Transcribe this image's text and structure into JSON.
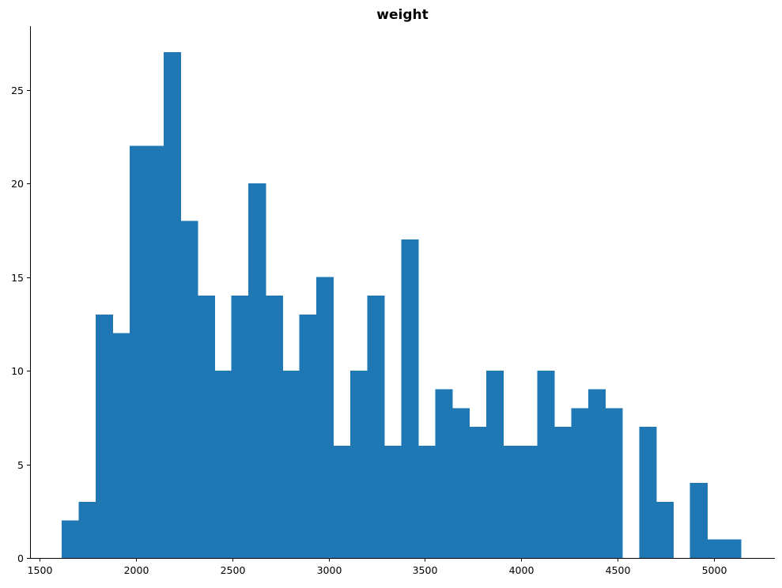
{
  "chart_data": {
    "type": "bar",
    "title": "weight",
    "xlabel": "",
    "ylabel": "",
    "bar_color": "#1f77b4",
    "x_ticks": [
      1500,
      2000,
      2500,
      3000,
      3500,
      4000,
      4500,
      5000
    ],
    "y_ticks": [
      0,
      5,
      10,
      15,
      20,
      25
    ],
    "xlim": [
      1449,
      5317
    ],
    "ylim": [
      0,
      28.4
    ],
    "bin_start": 1613,
    "bin_width": 88.2,
    "values": [
      2,
      3,
      13,
      12,
      22,
      22,
      27,
      18,
      14,
      10,
      14,
      20,
      14,
      10,
      13,
      15,
      6,
      10,
      14,
      6,
      17,
      6,
      9,
      8,
      7,
      10,
      6,
      6,
      10,
      7,
      8,
      9,
      8,
      0,
      7,
      3,
      0,
      4,
      1,
      1
    ],
    "grid": false
  }
}
